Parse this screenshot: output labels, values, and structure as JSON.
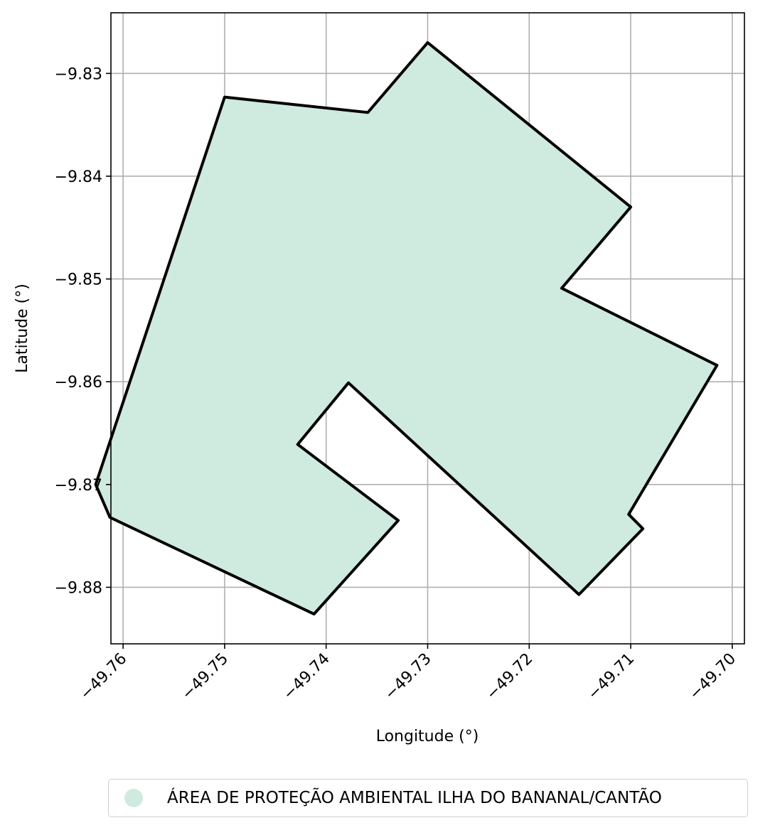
{
  "chart_data": {
    "type": "map-polygon",
    "xlabel": "Longitude (°)",
    "ylabel": "Latitude (°)",
    "xlim": [
      -49.7612,
      -49.6988
    ],
    "ylim": [
      -9.8855,
      -9.8241
    ],
    "x_ticks": [
      -49.76,
      -49.75,
      -49.74,
      -49.73,
      -49.72,
      -49.71,
      -49.7
    ],
    "x_tick_labels": [
      "−49.76",
      "−49.75",
      "−49.74",
      "−49.73",
      "−49.72",
      "−49.71",
      "−49.70"
    ],
    "y_ticks": [
      -9.83,
      -9.84,
      -9.85,
      -9.86,
      -9.87,
      -9.88
    ],
    "y_tick_labels": [
      "−9.83",
      "−9.84",
      "−9.85",
      "−9.86",
      "−9.87",
      "−9.88"
    ],
    "grid": true,
    "fill_color": "#cfeadf",
    "edge_color": "#000000",
    "polygon": [
      [
        -49.75,
        -9.8323
      ],
      [
        -49.7359,
        -9.8338
      ],
      [
        -49.73,
        -9.827
      ],
      [
        -49.71,
        -9.843
      ],
      [
        -49.7168,
        -9.8509
      ],
      [
        -49.7015,
        -9.8584
      ],
      [
        -49.7102,
        -9.8729
      ],
      [
        -49.7088,
        -9.8743
      ],
      [
        -49.7151,
        -9.8807
      ],
      [
        -49.7378,
        -9.8601
      ],
      [
        -49.7428,
        -9.8661
      ],
      [
        -49.7329,
        -9.8735
      ],
      [
        -49.7412,
        -9.8826
      ],
      [
        -49.7613,
        -9.8732
      ],
      [
        -49.7627,
        -9.87
      ]
    ],
    "legend": {
      "placement": "bottom-center",
      "entries": [
        {
          "label": "ÁREA DE PROTEÇÃO AMBIENTAL ILHA DO BANANAL/CANTÃO",
          "color": "#cfeadf"
        }
      ]
    }
  }
}
